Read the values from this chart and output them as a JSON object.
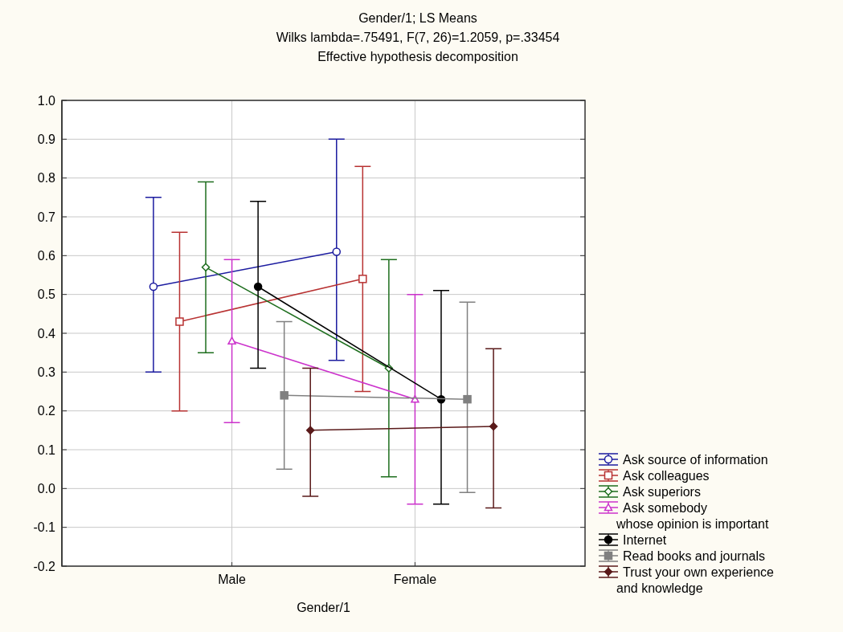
{
  "chart_data": {
    "type": "line",
    "title": "Gender/1; LS Means",
    "subtitle": "Wilks lambda=.75491, F(7, 26)=1.2059, p=.33454\nEffective hypothesis decomposition",
    "xlabel": "Gender/1",
    "categories": [
      null,
      null,
      null,
      null,
      null,
      null,
      "Male",
      null,
      null,
      null,
      null,
      null,
      null,
      "Female",
      null,
      null,
      null,
      null,
      null,
      null
    ],
    "ylim": [
      -0.2,
      1.0
    ],
    "yticks": [
      {
        "value": -0.2,
        "label": "-0.2"
      },
      {
        "value": -0.1,
        "label": "-0.1"
      },
      {
        "value": 0,
        "label": "0.0"
      },
      {
        "value": 0.1,
        "label": "0.1"
      },
      {
        "value": 0.2,
        "label": "0.2"
      },
      {
        "value": 0.3,
        "label": "0.3"
      },
      {
        "value": 0.4,
        "label": "0.4"
      },
      {
        "value": 0.5,
        "label": "0.5"
      },
      {
        "value": 0.6,
        "label": "0.6"
      },
      {
        "value": 0.7,
        "label": "0.7"
      },
      {
        "value": 0.8,
        "label": "0.8"
      },
      {
        "value": 0.9,
        "label": "0.9"
      },
      {
        "value": 1.0,
        "label": "1.0"
      }
    ],
    "grid": true,
    "legend": "bottom right",
    "series": [
      {
        "name": "Ask source of information",
        "color": "#1c1ca0",
        "marker": "circle",
        "values": [
          null,
          null,
          null,
          0.52,
          null,
          null,
          null,
          null,
          null,
          null,
          0.61,
          null,
          null,
          null,
          null,
          null,
          null,
          null,
          null,
          null
        ],
        "errors": [
          null,
          null,
          null,
          [
            0.3,
            0.75
          ],
          null,
          null,
          null,
          null,
          null,
          null,
          [
            0.33,
            0.9
          ],
          null,
          null,
          null,
          null,
          null,
          null,
          null,
          null,
          null
        ]
      },
      {
        "name": "Ask colleagues",
        "color": "#b83232",
        "marker": "square",
        "values": [
          null,
          null,
          null,
          null,
          0.43,
          null,
          null,
          null,
          null,
          null,
          null,
          0.54,
          null,
          null,
          null,
          null,
          null,
          null,
          null,
          null
        ],
        "errors": [
          null,
          null,
          null,
          null,
          [
            0.2,
            0.66
          ],
          null,
          null,
          null,
          null,
          null,
          null,
          [
            0.25,
            0.83
          ],
          null,
          null,
          null,
          null,
          null,
          null,
          null,
          null
        ]
      },
      {
        "name": "Ask superiors",
        "color": "#1e6e1e",
        "marker": "diamond",
        "values": [
          null,
          null,
          null,
          null,
          null,
          0.57,
          null,
          null,
          null,
          null,
          null,
          null,
          0.31,
          null,
          null,
          null,
          null,
          null,
          null,
          null
        ],
        "errors": [
          null,
          null,
          null,
          null,
          null,
          [
            0.35,
            0.79
          ],
          null,
          null,
          null,
          null,
          null,
          null,
          [
            0.03,
            0.59
          ],
          null,
          null,
          null,
          null,
          null,
          null,
          null
        ]
      },
      {
        "name": "Ask somebody\nwhose opinion is important",
        "color": "#cc33cc",
        "marker": "triangle",
        "values": [
          null,
          null,
          null,
          null,
          null,
          null,
          0.38,
          null,
          null,
          null,
          null,
          null,
          null,
          0.23,
          null,
          null,
          null,
          null,
          null,
          null
        ],
        "errors": [
          null,
          null,
          null,
          null,
          null,
          null,
          [
            0.17,
            0.59
          ],
          null,
          null,
          null,
          null,
          null,
          null,
          [
            -0.04,
            0.5
          ],
          null,
          null,
          null,
          null,
          null,
          null
        ]
      },
      {
        "name": "Internet",
        "color": "#000000",
        "marker": "circle",
        "values": [
          null,
          null,
          null,
          null,
          null,
          null,
          null,
          0.52,
          null,
          null,
          null,
          null,
          null,
          null,
          0.23,
          null,
          null,
          null,
          null,
          null
        ],
        "errors": [
          null,
          null,
          null,
          null,
          null,
          null,
          null,
          [
            0.31,
            0.74
          ],
          null,
          null,
          null,
          null,
          null,
          null,
          [
            -0.04,
            0.51
          ],
          null,
          null,
          null,
          null,
          null
        ]
      },
      {
        "name": "Read books and journals",
        "color": "#808080",
        "marker": "square",
        "values": [
          null,
          null,
          null,
          null,
          null,
          null,
          null,
          null,
          0.24,
          null,
          null,
          null,
          null,
          null,
          null,
          0.23,
          null,
          null,
          null,
          null
        ],
        "errors": [
          null,
          null,
          null,
          null,
          null,
          null,
          null,
          null,
          [
            0.05,
            0.43
          ],
          null,
          null,
          null,
          null,
          null,
          null,
          [
            -0.01,
            0.48
          ],
          null,
          null,
          null,
          null
        ]
      },
      {
        "name": "Trust your own experience\nand knowledge",
        "color": "#5a1a1a",
        "marker": "diamond",
        "values": [
          null,
          null,
          null,
          null,
          null,
          null,
          null,
          null,
          null,
          0.15,
          null,
          null,
          null,
          null,
          null,
          null,
          0.16,
          null,
          null,
          null
        ],
        "errors": [
          null,
          null,
          null,
          null,
          null,
          null,
          null,
          null,
          null,
          [
            -0.02,
            0.31
          ],
          null,
          null,
          null,
          null,
          null,
          null,
          [
            -0.05,
            0.36
          ],
          null,
          null,
          null
        ]
      }
    ]
  }
}
